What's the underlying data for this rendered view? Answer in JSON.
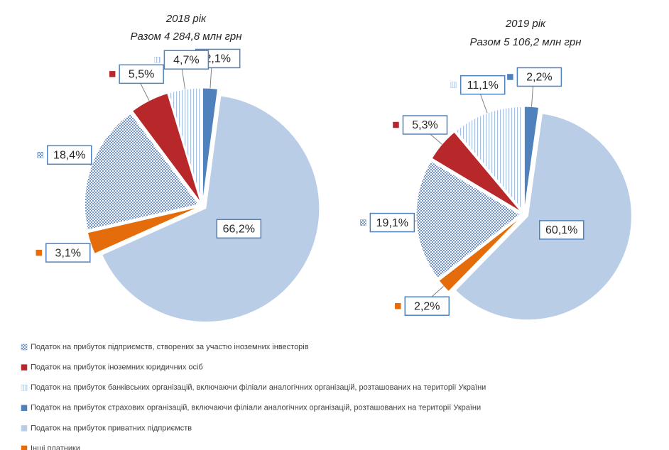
{
  "legend": [
    {
      "name": "Податок на прибуток підприємств, створених за участю іноземних інвесторів",
      "color": "#6f95c9",
      "pattern": "checker"
    },
    {
      "name": "Податок на прибуток іноземних юридичних осіб",
      "color": "#b8282b",
      "pattern": "solid"
    },
    {
      "name": "Податок на прибуток банківських організацій, включаючи філіали аналогічних організацій, розташованих на території України",
      "color": "#a9c1e0",
      "pattern": "stripes"
    },
    {
      "name": "Податок на прибуток страхових організацій, включаючи філіали аналогічних організацій, розташованих на території України",
      "color": "#4f81bd",
      "pattern": "solid"
    },
    {
      "name": "Податок на прибуток приватних підприємств",
      "color": "#b9cde6",
      "pattern": "solid"
    },
    {
      "name": "Інші платники",
      "color": "#e46c0a",
      "pattern": "solid"
    }
  ],
  "chart_data": [
    {
      "type": "pie",
      "title": "2018 рік",
      "subtitle": "Разом 4 284,8 млн грн",
      "values": [
        18.4,
        5.5,
        4.7,
        2.1,
        66.2,
        3.1
      ],
      "value_labels": [
        "18,4%",
        "5,5%",
        "4,7%",
        "2,1%",
        "66,2%",
        "3,1%"
      ]
    },
    {
      "type": "pie",
      "title": "2019 рік",
      "subtitle": "Разом 5 106,2 млн грн",
      "values": [
        19.1,
        5.3,
        11.1,
        2.2,
        60.1,
        2.2
      ],
      "value_labels": [
        "19,1%",
        "5,3%",
        "11,1%",
        "2,2%",
        "60,1%",
        "2,2%"
      ]
    }
  ]
}
